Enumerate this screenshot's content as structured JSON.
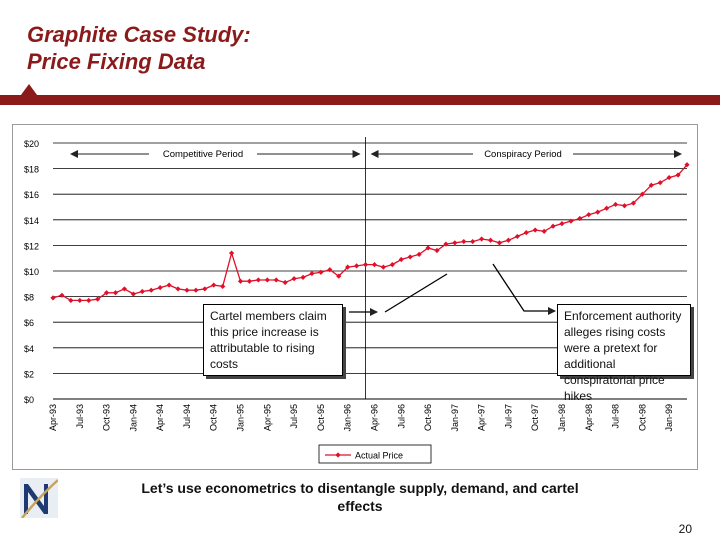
{
  "slide": {
    "title_line1": "Graphite Case Study:",
    "title_line2": "Price Fixing Data",
    "footer_line1": "Let’s use econometrics to disentangle supply, demand, and cartel",
    "footer_line2": "effects",
    "page_number": "20",
    "accent_color": "#8b1a1a",
    "logo_icon": "n-logo-icon"
  },
  "callouts": {
    "cartel": "Cartel members claim this price increase is attributable to rising costs",
    "enforcement": "Enforcement authority alleges rising costs were a pretext for additional conspiratorial price hikes"
  },
  "chart_data": {
    "type": "line",
    "series": [
      {
        "name": "Actual Price",
        "color": "#e0102a",
        "values": [
          7.9,
          8.1,
          7.7,
          7.7,
          7.7,
          7.8,
          8.3,
          8.3,
          8.6,
          8.2,
          8.4,
          8.5,
          8.7,
          8.9,
          8.6,
          8.5,
          8.5,
          8.6,
          8.9,
          8.8,
          11.4,
          9.2,
          9.2,
          9.3,
          9.3,
          9.3,
          9.1,
          9.4,
          9.5,
          9.8,
          9.9,
          10.1,
          9.6,
          10.3,
          10.4,
          10.5,
          10.5,
          10.3,
          10.5,
          10.9,
          11.1,
          11.3,
          11.8,
          11.6,
          12.1,
          12.2,
          12.3,
          12.3,
          12.5,
          12.4,
          12.2,
          12.4,
          12.7,
          13.0,
          13.2,
          13.1,
          13.5,
          13.7,
          13.9,
          14.1,
          14.4,
          14.6,
          14.9,
          15.2,
          15.1,
          15.3,
          16.0,
          16.7,
          16.9,
          17.3,
          17.5,
          18.3
        ]
      }
    ],
    "x_tick_labels": [
      "Apr-93",
      "Jul-93",
      "Oct-93",
      "Jan-94",
      "Apr-94",
      "Jul-94",
      "Oct-94",
      "Jan-95",
      "Apr-95",
      "Jul-95",
      "Oct-95",
      "Jan-96",
      "Apr-96",
      "Jul-96",
      "Oct-96",
      "Jan-97",
      "Apr-97",
      "Jul-97",
      "Oct-97",
      "Jan-98",
      "Apr-98",
      "Jul-98",
      "Oct-98",
      "Jan-99"
    ],
    "y_tick_labels": [
      "$0",
      "$2",
      "$4",
      "$6",
      "$8",
      "$10",
      "$12",
      "$14",
      "$16",
      "$18",
      "$20"
    ],
    "ylim": [
      0,
      20
    ],
    "grid": "horizontal",
    "legend": "bottom",
    "period_labels": [
      "Competitive Period",
      "Conspiracy Period"
    ],
    "period_boundary_index": 35
  }
}
